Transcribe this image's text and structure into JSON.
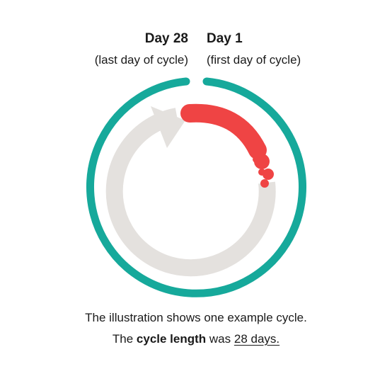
{
  "labels": {
    "end": {
      "title": "Day 28",
      "subtitle": "(last day of cycle)"
    },
    "start": {
      "title": "Day 1",
      "subtitle": "(first day of cycle)"
    }
  },
  "caption": {
    "line1": "The illustration shows one example cycle.",
    "line2_prefix": "The ",
    "line2_bold": "cycle length",
    "line2_middle": " was ",
    "line2_link": "28 days."
  },
  "colors": {
    "cycle_ring": "#16a99b",
    "arrow": "#e4e1de",
    "period": "#ef4444",
    "text": "#1a1a1a"
  },
  "cycle": {
    "length_days": 28,
    "period_days": 5
  }
}
